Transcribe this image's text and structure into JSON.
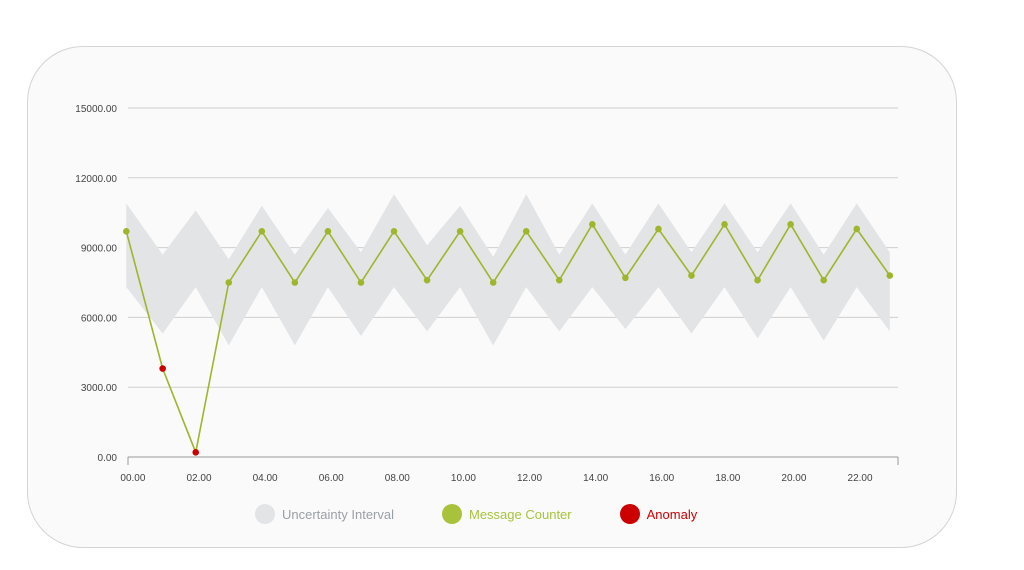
{
  "chart_data": {
    "type": "line",
    "y_ticks": [
      "0.00",
      "3000.00",
      "6000.00",
      "9000.00",
      "12000.00",
      "15000.00"
    ],
    "x_ticks": [
      "00.00",
      "02.00",
      "04.00",
      "06.00",
      "08.00",
      "10.00",
      "12.00",
      "14.00",
      "16.00",
      "18.00",
      "20.00",
      "22.00"
    ],
    "x_tick_values": [
      0,
      2,
      4,
      6,
      8,
      10,
      12,
      14,
      16,
      18,
      20,
      22
    ],
    "xlim": [
      -0.3,
      23.3
    ],
    "ylim": [
      0,
      15000
    ],
    "grid": true,
    "legend_position": "bottom",
    "series": [
      {
        "name": "Message Counter",
        "color": "#9fb52c",
        "x": [
          -0.2,
          0.9,
          1.9,
          2.9,
          3.9,
          4.9,
          5.9,
          6.9,
          7.9,
          8.9,
          9.9,
          10.9,
          11.9,
          12.9,
          13.9,
          14.9,
          15.9,
          16.9,
          17.9,
          18.9,
          19.9,
          20.9,
          21.9,
          22.9
        ],
        "values": [
          9700,
          3800,
          200,
          7500,
          9700,
          7500,
          9700,
          7500,
          9700,
          7600,
          9700,
          7500,
          9700,
          7600,
          10000,
          7700,
          9800,
          7800,
          10000,
          7600,
          10000,
          7600,
          9800,
          7800
        ]
      },
      {
        "name": "Uncertainty Interval",
        "color": "#e2e4e6",
        "x": [
          -0.2,
          0.9,
          1.9,
          2.9,
          3.9,
          4.9,
          5.9,
          6.9,
          7.9,
          8.9,
          9.9,
          10.9,
          11.9,
          12.9,
          13.9,
          14.9,
          15.9,
          16.9,
          17.9,
          18.9,
          19.9,
          20.9,
          21.9,
          22.9
        ],
        "upper": [
          10900,
          8700,
          10600,
          8500,
          10800,
          8700,
          10700,
          8800,
          11300,
          9100,
          10800,
          8600,
          11300,
          8700,
          10900,
          8700,
          10900,
          8800,
          10900,
          8800,
          10900,
          8700,
          10900,
          8800
        ],
        "lower": [
          7300,
          5300,
          7300,
          4800,
          7300,
          4800,
          7300,
          5200,
          7300,
          5400,
          7300,
          4800,
          7300,
          5400,
          7300,
          5500,
          7300,
          5300,
          7300,
          5100,
          7300,
          5000,
          7300,
          5400
        ]
      },
      {
        "name": "Anomaly",
        "color": "#cc0000",
        "x": [
          0.9,
          1.9
        ],
        "values": [
          3800,
          200
        ]
      }
    ]
  },
  "legend": [
    {
      "name": "Uncertainty Interval",
      "color": "#e2e4e6",
      "text_color": "#9aa0a6"
    },
    {
      "name": "Message Counter",
      "color": "#a9c23c",
      "text_color": "#a9c23c"
    },
    {
      "name": "Anomaly",
      "color": "#cc0000",
      "text_color": "#cc0000"
    }
  ]
}
